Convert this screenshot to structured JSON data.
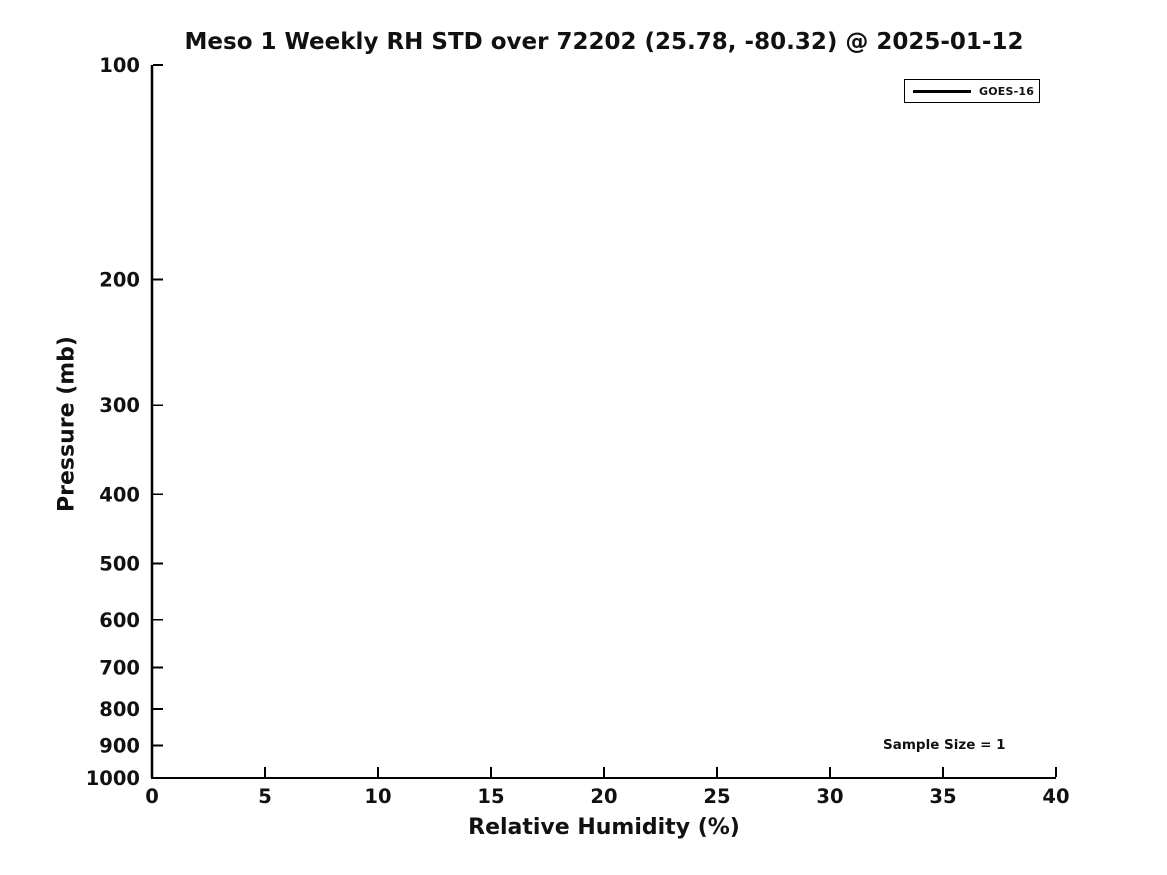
{
  "figure": {
    "title": "Meso 1 Weekly RH STD over 72202 (25.78, -80.32) @ 2025-01-12",
    "xlabel": "Relative Humidity (%)",
    "ylabel": "Pressure (mb)",
    "annotation": "Sample Size = 1",
    "legend": {
      "position": "upper right",
      "items": [
        {
          "label": "GOES-16",
          "color": "#000000"
        }
      ]
    },
    "colors": {
      "foreground": "#000000",
      "background": "#ffffff"
    }
  },
  "chart_data": {
    "type": "line",
    "title": "Meso 1 Weekly RH STD over 72202 (25.78, -80.32) @ 2025-01-12",
    "xlabel": "Relative Humidity (%)",
    "ylabel": "Pressure (mb)",
    "xlim": [
      0,
      40
    ],
    "ylim": [
      100,
      1000
    ],
    "x_ticks": [
      0,
      5,
      10,
      15,
      20,
      25,
      30,
      35,
      40
    ],
    "y_ticks": [
      100,
      200,
      300,
      400,
      500,
      600,
      700,
      800,
      900,
      1000
    ],
    "x_scale": "linear",
    "y_scale": "log",
    "y_inverted": true,
    "grid": false,
    "legend_position": "upper right",
    "annotation": "Sample Size = 1",
    "series": [
      {
        "name": "GOES-16",
        "color": "#000000",
        "note": "RH STD is 0 at all levels (sample size = 1); line coincides with x=0 axis",
        "x": [
          0,
          0,
          0,
          0,
          0,
          0,
          0,
          0,
          0,
          0
        ],
        "y": [
          100,
          200,
          300,
          400,
          500,
          600,
          700,
          800,
          900,
          1000
        ]
      }
    ]
  }
}
